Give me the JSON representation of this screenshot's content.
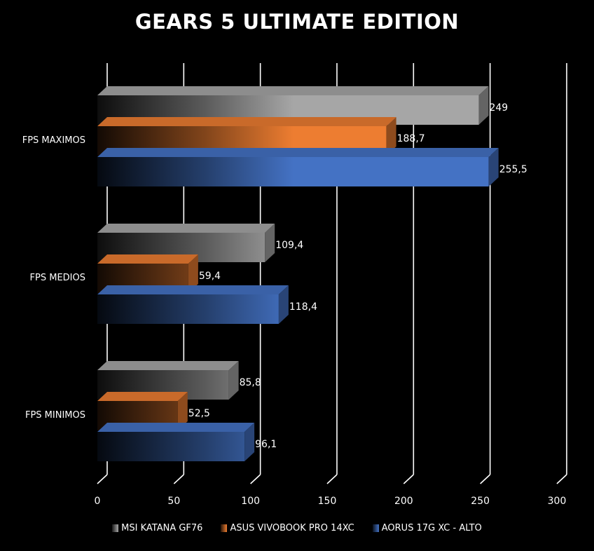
{
  "chart_data": {
    "type": "bar",
    "orientation": "horizontal",
    "style": "3d",
    "title": "GEARS 5 ULTIMATE EDITION",
    "categories": [
      "FPS MAXIMOS",
      "FPS MEDIOS",
      "FPS MINIMOS"
    ],
    "series": [
      {
        "name": "MSI KATANA GF76",
        "values": [
          249,
          109.4,
          85.8
        ],
        "labels": [
          "249",
          "109,4",
          "85,8"
        ],
        "color": "#a6a6a6"
      },
      {
        "name": "ASUS VIVOBOOK PRO 14XC",
        "values": [
          188.7,
          59.4,
          52.5
        ],
        "labels": [
          "188,7",
          "59,4",
          "52,5"
        ],
        "color": "#ed7d31"
      },
      {
        "name": "AORUS 17G XC - ALTO",
        "values": [
          255.5,
          118.4,
          96.1
        ],
        "labels": [
          "255,5",
          "118,4",
          "96,1"
        ],
        "color": "#4472c4"
      }
    ],
    "xlim": [
      0,
      300
    ],
    "xticks": [
      "0",
      "50",
      "100",
      "150",
      "200",
      "250",
      "300"
    ],
    "grid": true,
    "legend": "bottom",
    "background": "#000000"
  }
}
